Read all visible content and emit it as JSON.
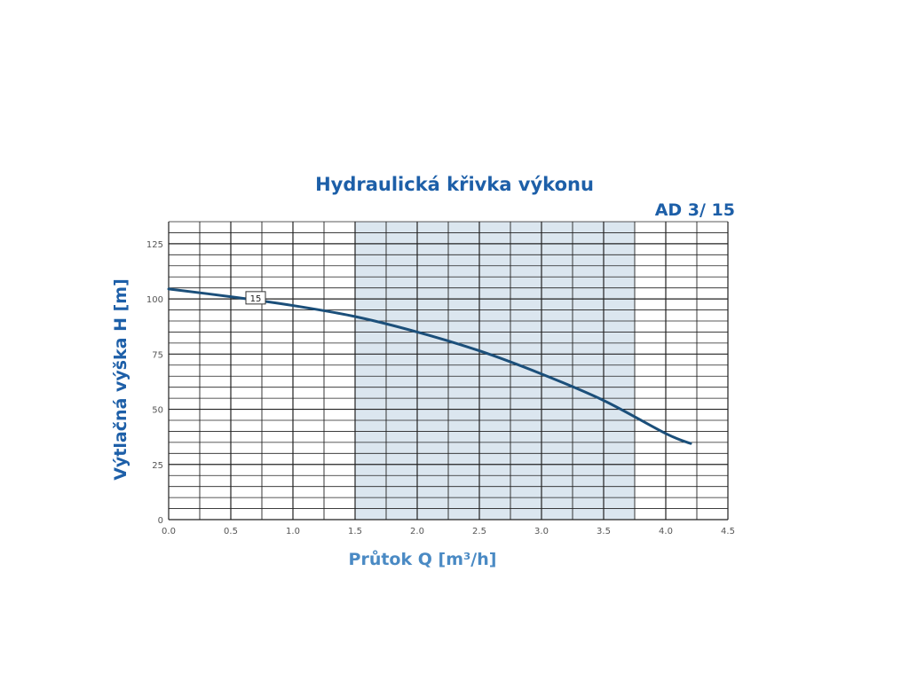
{
  "chart_data": {
    "type": "line",
    "title": "Hydraulická křivka výkonu",
    "model_label": "AD 3/ 15",
    "xlabel": "Průtok Q [m³/h]",
    "ylabel": "Výtlačná výška H [m]",
    "xlim": [
      0,
      4.5
    ],
    "ylim": [
      0,
      135
    ],
    "x_ticks": [
      0.0,
      0.5,
      1.0,
      1.5,
      2.0,
      2.5,
      3.0,
      3.5,
      4.0,
      4.5
    ],
    "x_tick_labels": [
      "0.0",
      "0.5",
      "1.0",
      "1.5",
      "2.0",
      "2.5",
      "3.0",
      "3.5",
      "4.0",
      "4.5"
    ],
    "y_ticks": [
      0,
      25,
      50,
      75,
      100,
      125
    ],
    "y_tick_labels": [
      "0",
      "25",
      "50",
      "75",
      "100",
      "125"
    ],
    "grid": true,
    "highlight_range": [
      1.5,
      3.75
    ],
    "colors": {
      "curve": "#1b4f7a",
      "band": "#dbe6ef",
      "grid": "#222222",
      "title": "#1d5fa8"
    },
    "series": [
      {
        "name": "15",
        "x": [
          0.0,
          0.5,
          1.0,
          1.5,
          2.0,
          2.5,
          3.0,
          3.5,
          4.0,
          4.2
        ],
        "y": [
          104.5,
          101,
          97,
          92,
          85,
          76.5,
          66,
          54,
          39,
          34.5
        ]
      }
    ]
  }
}
